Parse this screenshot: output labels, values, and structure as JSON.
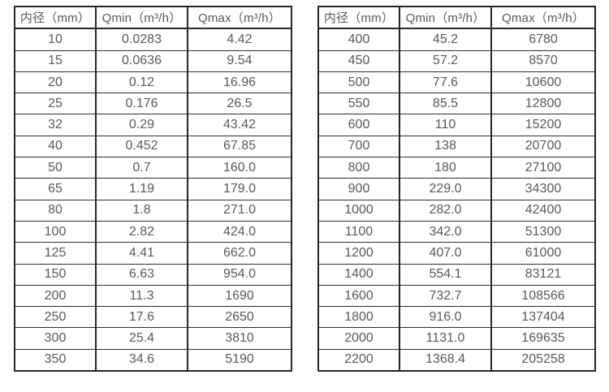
{
  "styles": {
    "background_color": "#ffffff",
    "border_color": "#262626",
    "text_color": "#595959"
  },
  "tables": [
    {
      "name": "flow-table-small-diameters",
      "headers": [
        "内径（mm）",
        "Qmin（m³/h）",
        "Qmax（m³/h）"
      ],
      "rows": [
        [
          "10",
          "0.0283",
          "4.42"
        ],
        [
          "15",
          "0.0636",
          "9.54"
        ],
        [
          "20",
          "0.12",
          "16.96"
        ],
        [
          "25",
          "0.176",
          "26.5"
        ],
        [
          "32",
          "0.29",
          "43.42"
        ],
        [
          "40",
          "0.452",
          "67.85"
        ],
        [
          "50",
          "0.7",
          "160.0"
        ],
        [
          "65",
          "1.19",
          "179.0"
        ],
        [
          "80",
          "1.8",
          "271.0"
        ],
        [
          "100",
          "2.82",
          "424.0"
        ],
        [
          "125",
          "4.41",
          "662.0"
        ],
        [
          "150",
          "6.63",
          "954.0"
        ],
        [
          "200",
          "11.3",
          "1690"
        ],
        [
          "250",
          "17.6",
          "2650"
        ],
        [
          "300",
          "25.4",
          "3810"
        ],
        [
          "350",
          "34.6",
          "5190"
        ]
      ]
    },
    {
      "name": "flow-table-large-diameters",
      "headers": [
        "内径（mm）",
        "Qmin（m³/h）",
        "Qmax（m³/h）"
      ],
      "rows": [
        [
          "400",
          "45.2",
          "6780"
        ],
        [
          "450",
          "57.2",
          "8570"
        ],
        [
          "500",
          "77.6",
          "10600"
        ],
        [
          "550",
          "85.5",
          "12800"
        ],
        [
          "600",
          "110",
          "15200"
        ],
        [
          "700",
          "138",
          "20700"
        ],
        [
          "800",
          "180",
          "27100"
        ],
        [
          "900",
          "229.0",
          "34300"
        ],
        [
          "1000",
          "282.0",
          "42400"
        ],
        [
          "1100",
          "342.0",
          "51300"
        ],
        [
          "1200",
          "407.0",
          "61000"
        ],
        [
          "1400",
          "554.1",
          "83121"
        ],
        [
          "1600",
          "732.7",
          "108566"
        ],
        [
          "1800",
          "916.0",
          "137404"
        ],
        [
          "2000",
          "1131.0",
          "169635"
        ],
        [
          "2200",
          "1368.4",
          "205258"
        ]
      ]
    }
  ]
}
